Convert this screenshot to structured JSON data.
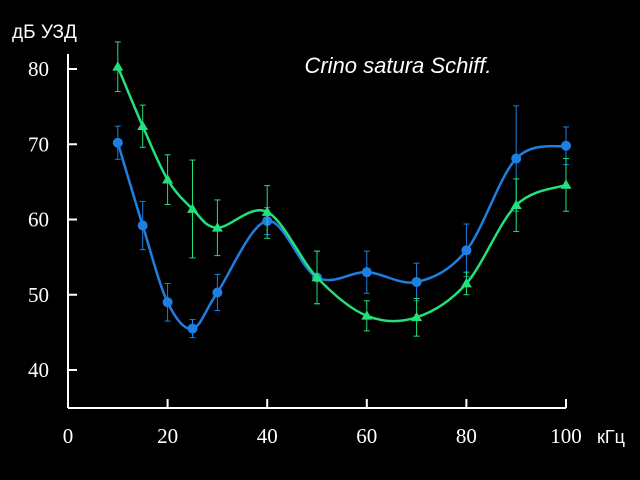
{
  "chart_data": {
    "type": "line",
    "title": "Crino satura Schiff.",
    "ylabel": "дБ УЗД",
    "xlabel": "кГц",
    "xlim": [
      0,
      100
    ],
    "ylim": [
      35,
      85
    ],
    "x_ticks": [
      "0",
      "20",
      "40",
      "60",
      "80",
      "100"
    ],
    "y_ticks": [
      "40",
      "50",
      "60",
      "70",
      "80"
    ],
    "grid": false,
    "series": [
      {
        "marker": "circle",
        "color": "#1e7fe0",
        "x": [
          10,
          15,
          20,
          25,
          30,
          40,
          50,
          60,
          70,
          80,
          90,
          100
        ],
        "y": [
          70.2,
          59.2,
          49.0,
          45.5,
          50.3,
          59.8,
          52.3,
          53.0,
          51.7,
          55.9,
          68.1,
          69.8
        ],
        "err": [
          2.2,
          3.2,
          2.5,
          1.2,
          2.4,
          1.8,
          3.5,
          2.8,
          2.5,
          3.5,
          7.0,
          2.5
        ]
      },
      {
        "marker": "triangle",
        "color": "#22e07a",
        "x": [
          10,
          15,
          20,
          25,
          30,
          40,
          50,
          60,
          70,
          80,
          90,
          100
        ],
        "y": [
          80.3,
          72.4,
          65.3,
          61.4,
          58.9,
          61.0,
          52.3,
          47.2,
          47.0,
          51.5,
          61.9,
          64.6
        ],
        "err": [
          3.3,
          2.8,
          3.3,
          6.5,
          3.7,
          3.5,
          3.5,
          2.0,
          2.5,
          1.5,
          3.5,
          3.5
        ]
      }
    ]
  }
}
